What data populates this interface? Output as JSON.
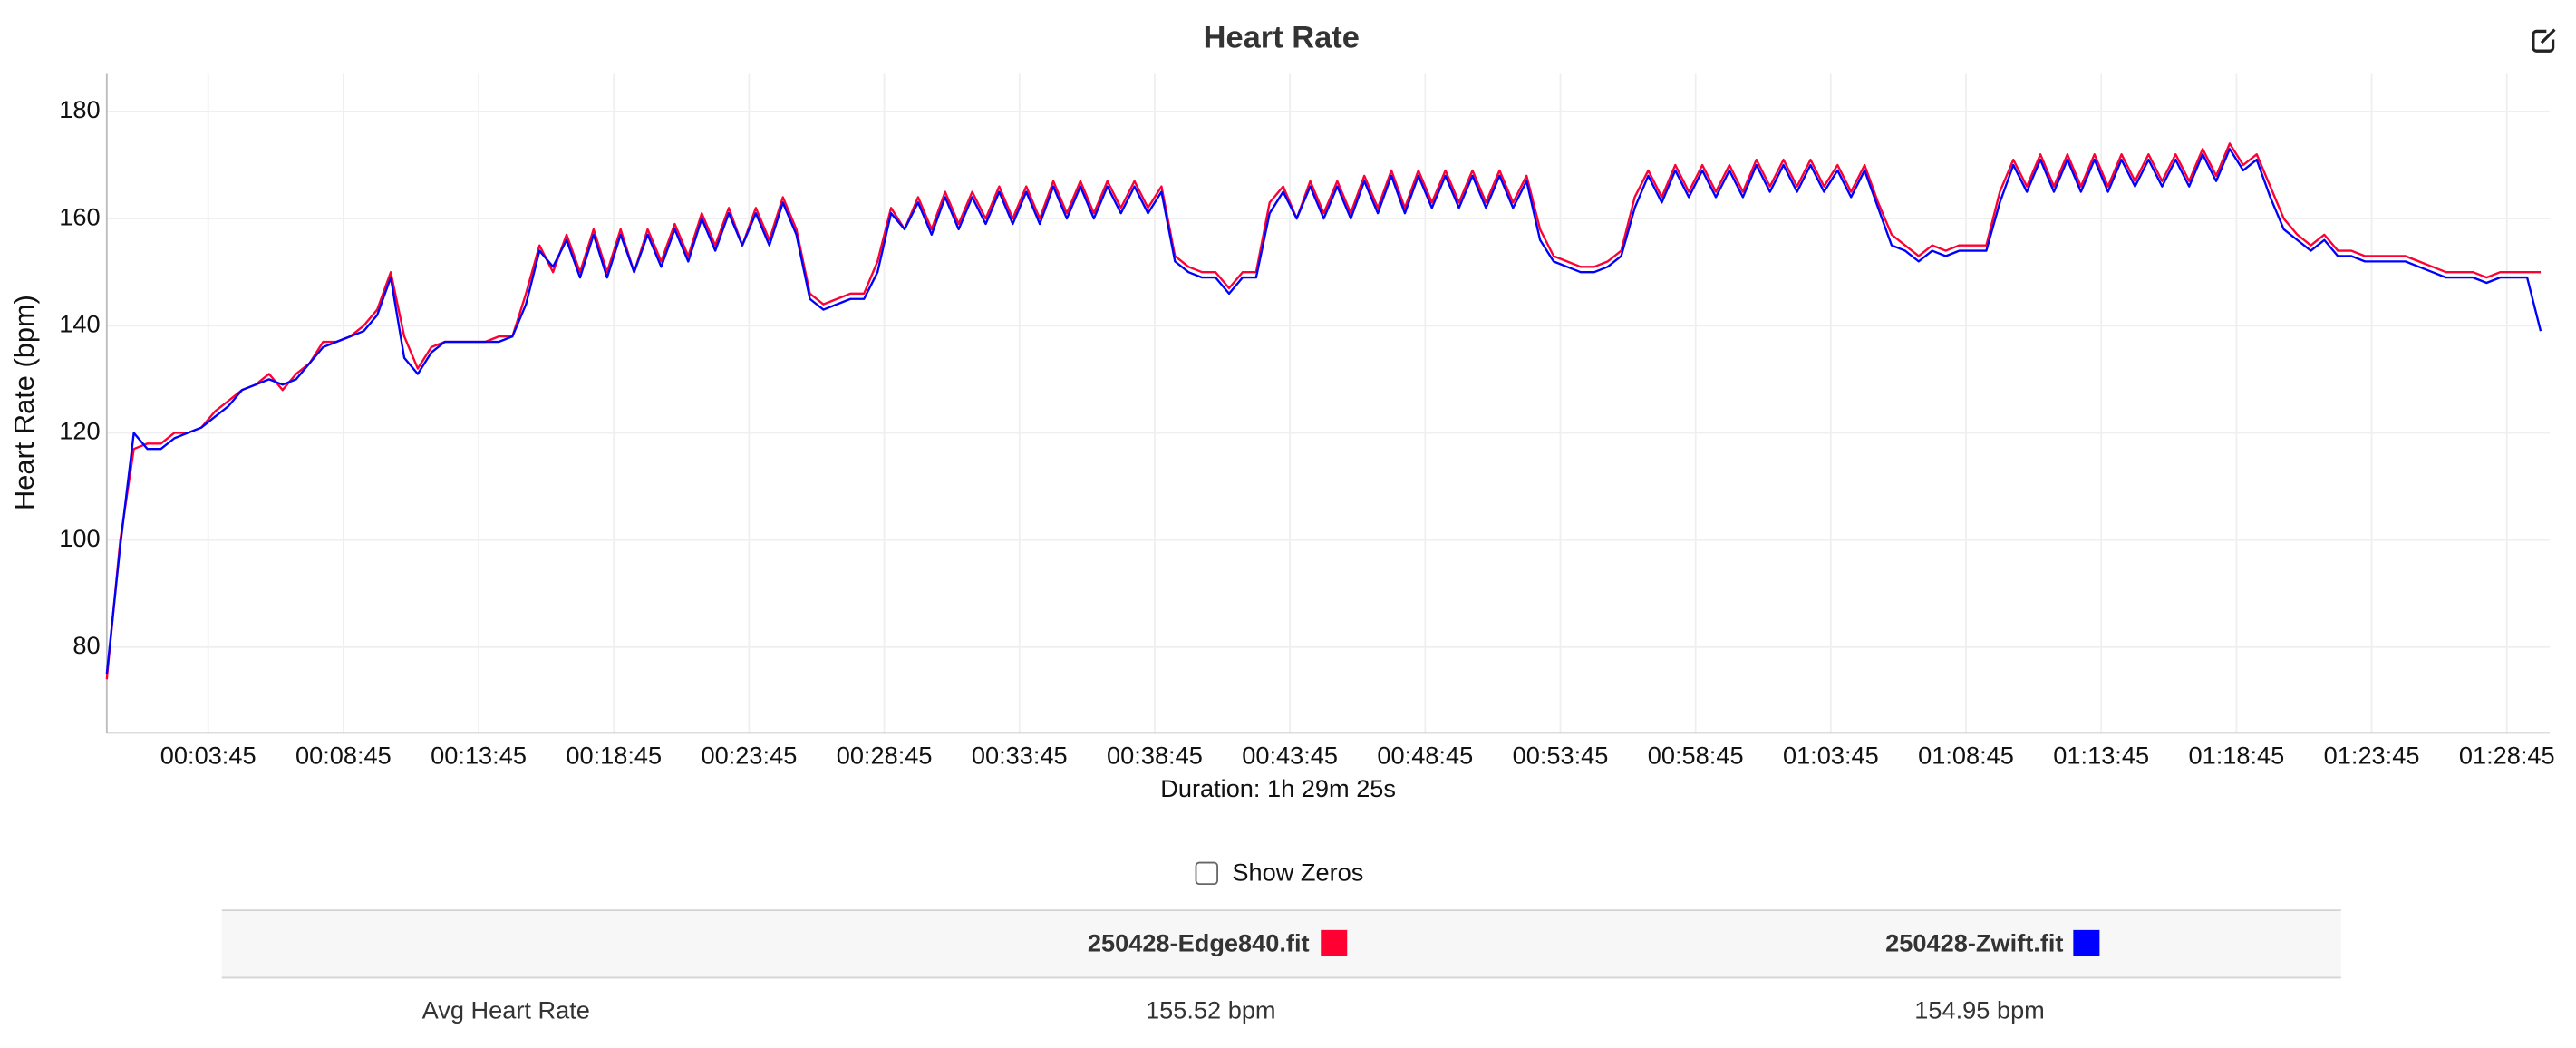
{
  "chart_data": {
    "type": "line",
    "title": "Heart Rate",
    "y_label": "Heart Rate (bpm)",
    "x_label": "Duration: 1h 29m 25s",
    "x": [
      0,
      30,
      60,
      90,
      120,
      150,
      180,
      210,
      240,
      270,
      300,
      330,
      360,
      390,
      420,
      450,
      480,
      510,
      540,
      570,
      600,
      630,
      660,
      690,
      720,
      750,
      780,
      810,
      840,
      870,
      900,
      930,
      960,
      990,
      1020,
      1050,
      1080,
      1110,
      1140,
      1170,
      1200,
      1230,
      1260,
      1290,
      1320,
      1350,
      1380,
      1410,
      1440,
      1470,
      1500,
      1530,
      1560,
      1590,
      1620,
      1650,
      1680,
      1710,
      1740,
      1770,
      1800,
      1830,
      1860,
      1890,
      1920,
      1950,
      1980,
      2010,
      2040,
      2070,
      2100,
      2130,
      2160,
      2190,
      2220,
      2250,
      2280,
      2310,
      2340,
      2370,
      2400,
      2430,
      2460,
      2490,
      2520,
      2550,
      2580,
      2610,
      2640,
      2670,
      2700,
      2730,
      2760,
      2790,
      2820,
      2850,
      2880,
      2910,
      2940,
      2970,
      3000,
      3030,
      3060,
      3090,
      3120,
      3150,
      3180,
      3210,
      3240,
      3270,
      3300,
      3330,
      3360,
      3390,
      3420,
      3450,
      3480,
      3510,
      3540,
      3570,
      3600,
      3630,
      3660,
      3690,
      3720,
      3750,
      3780,
      3810,
      3840,
      3870,
      3900,
      3930,
      3960,
      3990,
      4020,
      4050,
      4080,
      4110,
      4140,
      4170,
      4200,
      4230,
      4260,
      4290,
      4320,
      4350,
      4380,
      4410,
      4440,
      4470,
      4500,
      4530,
      4560,
      4590,
      4620,
      4650,
      4680,
      4710,
      4740,
      4770,
      4800,
      4830,
      4860,
      4890,
      4920,
      4950,
      4980,
      5010,
      5040,
      5070,
      5100,
      5130,
      5160,
      5190,
      5220,
      5250,
      5280,
      5310,
      5340,
      5370,
      5400
    ],
    "series": [
      {
        "name": "250428-Edge840.fit",
        "color": "#ff0033",
        "values": [
          74,
          100,
          117,
          118,
          118,
          120,
          120,
          121,
          124,
          126,
          128,
          129,
          131,
          128,
          131,
          133,
          137,
          137,
          138,
          140,
          143,
          150,
          138,
          132,
          136,
          137,
          137,
          137,
          137,
          138,
          138,
          146,
          155,
          150,
          157,
          150,
          158,
          150,
          158,
          150,
          158,
          152,
          159,
          153,
          161,
          155,
          162,
          155,
          162,
          156,
          164,
          158,
          146,
          144,
          145,
          146,
          146,
          152,
          162,
          158,
          164,
          158,
          165,
          159,
          165,
          160,
          166,
          160,
          166,
          160,
          167,
          161,
          167,
          161,
          167,
          162,
          167,
          162,
          166,
          153,
          151,
          150,
          150,
          147,
          150,
          150,
          163,
          166,
          160,
          167,
          161,
          167,
          161,
          168,
          162,
          169,
          162,
          169,
          163,
          169,
          163,
          169,
          163,
          169,
          163,
          168,
          158,
          153,
          152,
          151,
          151,
          152,
          154,
          164,
          169,
          164,
          170,
          165,
          170,
          165,
          170,
          165,
          171,
          166,
          171,
          166,
          171,
          166,
          170,
          165,
          170,
          163,
          157,
          155,
          153,
          155,
          154,
          155,
          155,
          155,
          165,
          171,
          166,
          172,
          166,
          172,
          166,
          172,
          166,
          172,
          167,
          172,
          167,
          172,
          167,
          173,
          168,
          174,
          170,
          172,
          166,
          160,
          157,
          155,
          157,
          154,
          154,
          153,
          153,
          153,
          153,
          152,
          151,
          150,
          150,
          150,
          149,
          150,
          150,
          150,
          150
        ]
      },
      {
        "name": "250428-Zwift.fit",
        "color": "#0000ff",
        "values": [
          75,
          99,
          120,
          117,
          117,
          119,
          120,
          121,
          123,
          125,
          128,
          129,
          130,
          129,
          130,
          133,
          136,
          137,
          138,
          139,
          142,
          149,
          134,
          131,
          135,
          137,
          137,
          137,
          137,
          137,
          138,
          144,
          154,
          151,
          156,
          149,
          157,
          149,
          157,
          150,
          157,
          151,
          158,
          152,
          160,
          154,
          161,
          155,
          161,
          155,
          163,
          157,
          145,
          143,
          144,
          145,
          145,
          150,
          161,
          158,
          163,
          157,
          164,
          158,
          164,
          159,
          165,
          159,
          165,
          159,
          166,
          160,
          166,
          160,
          166,
          161,
          166,
          161,
          165,
          152,
          150,
          149,
          149,
          146,
          149,
          149,
          161,
          165,
          160,
          166,
          160,
          166,
          160,
          167,
          161,
          168,
          161,
          168,
          162,
          168,
          162,
          168,
          162,
          168,
          162,
          167,
          156,
          152,
          151,
          150,
          150,
          151,
          153,
          162,
          168,
          163,
          169,
          164,
          169,
          164,
          169,
          164,
          170,
          165,
          170,
          165,
          170,
          165,
          169,
          164,
          169,
          162,
          155,
          154,
          152,
          154,
          153,
          154,
          154,
          154,
          163,
          170,
          165,
          171,
          165,
          171,
          165,
          171,
          165,
          171,
          166,
          171,
          166,
          171,
          166,
          172,
          167,
          173,
          169,
          171,
          164,
          158,
          156,
          154,
          156,
          153,
          153,
          152,
          152,
          152,
          152,
          151,
          150,
          149,
          149,
          149,
          148,
          149,
          149,
          149,
          139
        ]
      }
    ],
    "xlim": [
      0,
      5420
    ],
    "ylim": [
      64,
      187
    ],
    "xticks": [
      {
        "value": 225,
        "label": "00:03:45"
      },
      {
        "value": 525,
        "label": "00:08:45"
      },
      {
        "value": 825,
        "label": "00:13:45"
      },
      {
        "value": 1125,
        "label": "00:18:45"
      },
      {
        "value": 1425,
        "label": "00:23:45"
      },
      {
        "value": 1725,
        "label": "00:28:45"
      },
      {
        "value": 2025,
        "label": "00:33:45"
      },
      {
        "value": 2325,
        "label": "00:38:45"
      },
      {
        "value": 2625,
        "label": "00:43:45"
      },
      {
        "value": 2925,
        "label": "00:48:45"
      },
      {
        "value": 3225,
        "label": "00:53:45"
      },
      {
        "value": 3525,
        "label": "00:58:45"
      },
      {
        "value": 3825,
        "label": "01:03:45"
      },
      {
        "value": 4125,
        "label": "01:08:45"
      },
      {
        "value": 4425,
        "label": "01:13:45"
      },
      {
        "value": 4725,
        "label": "01:18:45"
      },
      {
        "value": 5025,
        "label": "01:23:45"
      },
      {
        "value": 5325,
        "label": "01:28:45"
      }
    ],
    "yticks": [
      80,
      100,
      120,
      140,
      160,
      180
    ],
    "grid": true
  },
  "controls": {
    "show_zeros": "Show Zeros"
  },
  "summary": {
    "rows": [
      {
        "label": "Avg Heart Rate",
        "values": [
          "155.52 bpm",
          "154.95 bpm"
        ]
      }
    ]
  }
}
